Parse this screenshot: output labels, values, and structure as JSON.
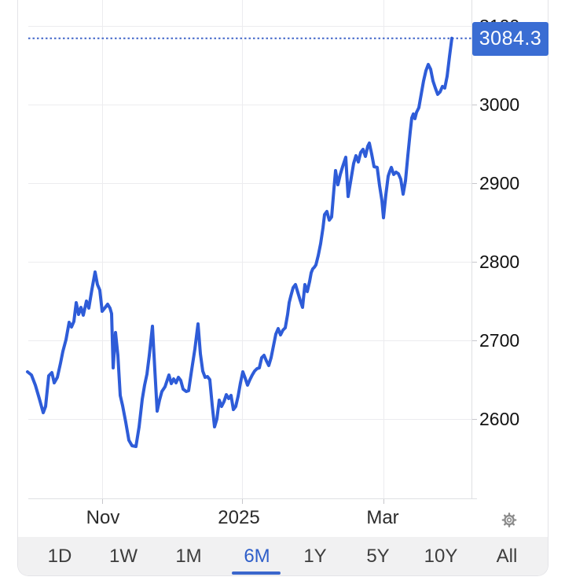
{
  "chart_data": {
    "type": "line",
    "y_ticks": [
      {
        "label": "3100",
        "value": 3100
      },
      {
        "label": "3000",
        "value": 3000
      },
      {
        "label": "2900",
        "value": 2900
      },
      {
        "label": "2800",
        "value": 2800
      },
      {
        "label": "2700",
        "value": 2700
      },
      {
        "label": "2600",
        "value": 2600
      }
    ],
    "x_ticks": [
      {
        "label": "Nov",
        "x": 131
      },
      {
        "label": "2025",
        "x": 304
      },
      {
        "label": "Mar",
        "x": 487
      }
    ],
    "v_gridlines": [
      130,
      308,
      488
    ],
    "current_price": 3084.3,
    "ylim": [
      2550,
      3100
    ],
    "legend": "none",
    "grid": "on",
    "plot": {
      "left_x": 36,
      "right_x": 600,
      "axis_y": 634,
      "top_value": 3100,
      "top_y": 33,
      "bottom_value": 2600,
      "bottom_y": 533
    },
    "series": [
      {
        "name": "price",
        "color": "#2e5cd8",
        "points": [
          [
            35,
            2660
          ],
          [
            40,
            2656
          ],
          [
            45,
            2643
          ],
          [
            50,
            2626
          ],
          [
            55,
            2608
          ],
          [
            58,
            2616
          ],
          [
            62,
            2655
          ],
          [
            66,
            2659
          ],
          [
            69,
            2646
          ],
          [
            73,
            2653
          ],
          [
            77,
            2671
          ],
          [
            80,
            2686
          ],
          [
            84,
            2701
          ],
          [
            88,
            2723
          ],
          [
            91,
            2717
          ],
          [
            94,
            2724
          ],
          [
            97,
            2748
          ],
          [
            100,
            2733
          ],
          [
            103,
            2742
          ],
          [
            106,
            2732
          ],
          [
            110,
            2750
          ],
          [
            113,
            2741
          ],
          [
            117,
            2765
          ],
          [
            121,
            2787
          ],
          [
            124,
            2771
          ],
          [
            127,
            2764
          ],
          [
            130,
            2737
          ],
          [
            134,
            2742
          ],
          [
            137,
            2746
          ],
          [
            140,
            2741
          ],
          [
            142,
            2734
          ],
          [
            144,
            2665
          ],
          [
            147,
            2710
          ],
          [
            150,
            2681
          ],
          [
            153,
            2630
          ],
          [
            156,
            2617
          ],
          [
            160,
            2596
          ],
          [
            164,
            2573
          ],
          [
            168,
            2566
          ],
          [
            173,
            2565
          ],
          [
            177,
            2590
          ],
          [
            181,
            2625
          ],
          [
            184,
            2643
          ],
          [
            187,
            2657
          ],
          [
            190,
            2681
          ],
          [
            194,
            2718
          ],
          [
            197,
            2663
          ],
          [
            200,
            2610
          ],
          [
            203,
            2624
          ],
          [
            206,
            2635
          ],
          [
            210,
            2641
          ],
          [
            213,
            2650
          ],
          [
            215,
            2656
          ],
          [
            218,
            2645
          ],
          [
            221,
            2651
          ],
          [
            224,
            2646
          ],
          [
            227,
            2653
          ],
          [
            230,
            2649
          ],
          [
            233,
            2638
          ],
          [
            237,
            2635
          ],
          [
            240,
            2636
          ],
          [
            244,
            2663
          ],
          [
            248,
            2689
          ],
          [
            252,
            2721
          ],
          [
            255,
            2683
          ],
          [
            258,
            2661
          ],
          [
            261,
            2653
          ],
          [
            264,
            2654
          ],
          [
            267,
            2650
          ],
          [
            270,
            2618
          ],
          [
            273,
            2590
          ],
          [
            276,
            2600
          ],
          [
            279,
            2624
          ],
          [
            282,
            2616
          ],
          [
            285,
            2622
          ],
          [
            288,
            2631
          ],
          [
            291,
            2626
          ],
          [
            294,
            2630
          ],
          [
            297,
            2612
          ],
          [
            300,
            2616
          ],
          [
            303,
            2629
          ],
          [
            306,
            2646
          ],
          [
            309,
            2660
          ],
          [
            312,
            2652
          ],
          [
            315,
            2643
          ],
          [
            318,
            2650
          ],
          [
            321,
            2656
          ],
          [
            324,
            2661
          ],
          [
            327,
            2664
          ],
          [
            330,
            2665
          ],
          [
            333,
            2678
          ],
          [
            336,
            2681
          ],
          [
            339,
            2674
          ],
          [
            342,
            2668
          ],
          [
            345,
            2678
          ],
          [
            348,
            2693
          ],
          [
            351,
            2708
          ],
          [
            354,
            2715
          ],
          [
            357,
            2707
          ],
          [
            360,
            2713
          ],
          [
            363,
            2716
          ],
          [
            366,
            2733
          ],
          [
            368,
            2748
          ],
          [
            370,
            2756
          ],
          [
            373,
            2767
          ],
          [
            376,
            2771
          ],
          [
            379,
            2761
          ],
          [
            382,
            2751
          ],
          [
            385,
            2742
          ],
          [
            388,
            2771
          ],
          [
            391,
            2762
          ],
          [
            394,
            2775
          ],
          [
            396,
            2786
          ],
          [
            398,
            2791
          ],
          [
            400,
            2793
          ],
          [
            402,
            2796
          ],
          [
            405,
            2808
          ],
          [
            408,
            2823
          ],
          [
            411,
            2843
          ],
          [
            413,
            2860
          ],
          [
            416,
            2864
          ],
          [
            419,
            2853
          ],
          [
            422,
            2857
          ],
          [
            425,
            2893
          ],
          [
            427,
            2916
          ],
          [
            430,
            2898
          ],
          [
            433,
            2911
          ],
          [
            436,
            2921
          ],
          [
            440,
            2933
          ],
          [
            443,
            2883
          ],
          [
            446,
            2901
          ],
          [
            450,
            2925
          ],
          [
            453,
            2935
          ],
          [
            456,
            2927
          ],
          [
            459,
            2939
          ],
          [
            462,
            2943
          ],
          [
            465,
            2934
          ],
          [
            468,
            2947
          ],
          [
            470,
            2951
          ],
          [
            473,
            2937
          ],
          [
            476,
            2921
          ],
          [
            480,
            2920
          ],
          [
            483,
            2897
          ],
          [
            486,
            2878
          ],
          [
            488,
            2856
          ],
          [
            491,
            2885
          ],
          [
            494,
            2909
          ],
          [
            496,
            2915
          ],
          [
            498,
            2920
          ],
          [
            501,
            2911
          ],
          [
            504,
            2914
          ],
          [
            507,
            2912
          ],
          [
            510,
            2905
          ],
          [
            513,
            2886
          ],
          [
            516,
            2903
          ],
          [
            519,
            2935
          ],
          [
            522,
            2965
          ],
          [
            524,
            2983
          ],
          [
            526,
            2988
          ],
          [
            528,
            2982
          ],
          [
            530,
            2990
          ],
          [
            533,
            2996
          ],
          [
            536,
            3013
          ],
          [
            539,
            3030
          ],
          [
            542,
            3043
          ],
          [
            545,
            3051
          ],
          [
            548,
            3045
          ],
          [
            551,
            3030
          ],
          [
            554,
            3021
          ],
          [
            557,
            3013
          ],
          [
            560,
            3016
          ],
          [
            563,
            3023
          ],
          [
            566,
            3021
          ],
          [
            569,
            3036
          ],
          [
            572,
            3061
          ],
          [
            575,
            3084.3
          ]
        ]
      }
    ]
  },
  "badge": {
    "value": "3084.3",
    "bg": "#3a6dd3"
  },
  "range_selector": {
    "options": [
      "1D",
      "1W",
      "1M",
      "6M",
      "1Y",
      "5Y",
      "10Y",
      "All"
    ],
    "active": "6M",
    "active_color": "#2e5ec9"
  },
  "icons": {
    "settings": "gear-icon"
  },
  "colors": {
    "line": "#2e5cd8",
    "dotted_line": "#4166c9",
    "grid": "#ececef",
    "axis_line": "#dfe0e3",
    "tick": "#c6c6cb",
    "badge_bg": "#3a6dd3",
    "selector_bg": "#f1f1f2",
    "underline": "#3a66cc",
    "y_label": "#111111",
    "x_label": "#2b2b2b",
    "selector_text": "#3d3d3d",
    "card_border": "#e4e4e8",
    "gear": "#8b8b8b"
  }
}
